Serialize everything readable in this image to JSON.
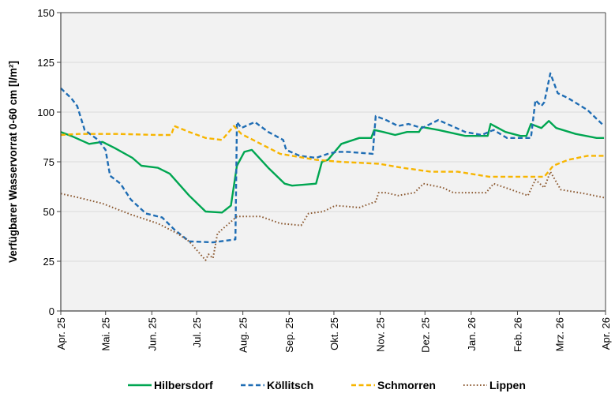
{
  "chart_data": {
    "type": "line",
    "title": "",
    "xlabel": "",
    "ylabel": "Verfügbarer Wasservorrat 0-60 cm [l/m²]",
    "ylim": [
      0,
      150
    ],
    "yticks": [
      0,
      25,
      50,
      75,
      100,
      125,
      150
    ],
    "xlim": [
      "2025-04-01",
      "2026-04-01"
    ],
    "xticks": [
      {
        "date": "2025-04-01",
        "label": "Apr. 25"
      },
      {
        "date": "2025-05-01",
        "label": "Mai. 25"
      },
      {
        "date": "2025-06-01",
        "label": "Jun. 25"
      },
      {
        "date": "2025-07-01",
        "label": "Jul. 25"
      },
      {
        "date": "2025-08-01",
        "label": "Aug. 25"
      },
      {
        "date": "2025-09-01",
        "label": "Sep. 25"
      },
      {
        "date": "2025-10-01",
        "label": "Okt. 25"
      },
      {
        "date": "2025-11-01",
        "label": "Nov. 25"
      },
      {
        "date": "2025-12-01",
        "label": "Dez. 25"
      },
      {
        "date": "2026-01-01",
        "label": "Jan. 26"
      },
      {
        "date": "2026-02-01",
        "label": "Feb. 26"
      },
      {
        "date": "2026-03-01",
        "label": "Mrz. 26"
      },
      {
        "date": "2026-04-01",
        "label": "Apr. 26"
      }
    ],
    "grid": true,
    "legend_position": "bottom",
    "series": [
      {
        "name": "Hilbersdorf",
        "color": "#00a651",
        "style": "solid",
        "points": [
          [
            "2025-04-01",
            90
          ],
          [
            "2025-04-08",
            88
          ],
          [
            "2025-04-20",
            84
          ],
          [
            "2025-04-29",
            85
          ],
          [
            "2025-05-07",
            82
          ],
          [
            "2025-05-19",
            77
          ],
          [
            "2025-05-25",
            73
          ],
          [
            "2025-06-05",
            72
          ],
          [
            "2025-06-13",
            69
          ],
          [
            "2025-06-26",
            58
          ],
          [
            "2025-07-07",
            50
          ],
          [
            "2025-07-18",
            49.5
          ],
          [
            "2025-07-24",
            53
          ],
          [
            "2025-07-28",
            73
          ],
          [
            "2025-08-02",
            80
          ],
          [
            "2025-08-07",
            81
          ],
          [
            "2025-08-18",
            72
          ],
          [
            "2025-08-29",
            64
          ],
          [
            "2025-09-03",
            63
          ],
          [
            "2025-09-19",
            64
          ],
          [
            "2025-09-23",
            75
          ],
          [
            "2025-09-27",
            76
          ],
          [
            "2025-10-06",
            84
          ],
          [
            "2025-10-18",
            87
          ],
          [
            "2025-10-26",
            87
          ],
          [
            "2025-10-28",
            91
          ],
          [
            "2025-11-03",
            90
          ],
          [
            "2025-11-11",
            88.5
          ],
          [
            "2025-11-19",
            90
          ],
          [
            "2025-11-27",
            90
          ],
          [
            "2025-11-29",
            92.5
          ],
          [
            "2025-12-10",
            91
          ],
          [
            "2025-12-28",
            88
          ],
          [
            "2026-01-12",
            88
          ],
          [
            "2026-01-14",
            94
          ],
          [
            "2026-01-24",
            90
          ],
          [
            "2026-02-03",
            88
          ],
          [
            "2026-02-07",
            88
          ],
          [
            "2026-02-10",
            94
          ],
          [
            "2026-02-17",
            92
          ],
          [
            "2026-02-22",
            95.5
          ],
          [
            "2026-02-27",
            92
          ],
          [
            "2026-03-12",
            89
          ],
          [
            "2026-03-26",
            87
          ],
          [
            "2026-03-31",
            87
          ]
        ]
      },
      {
        "name": "Köllitsch",
        "color": "#1f6db4",
        "style": "dashed",
        "points": [
          [
            "2025-04-01",
            112
          ],
          [
            "2025-04-08",
            107
          ],
          [
            "2025-04-12",
            103
          ],
          [
            "2025-04-17",
            91
          ],
          [
            "2025-04-26",
            86
          ],
          [
            "2025-05-01",
            81
          ],
          [
            "2025-05-04",
            68
          ],
          [
            "2025-05-11",
            64
          ],
          [
            "2025-05-18",
            56
          ],
          [
            "2025-05-28",
            49
          ],
          [
            "2025-06-08",
            47
          ],
          [
            "2025-06-16",
            41
          ],
          [
            "2025-06-26",
            35
          ],
          [
            "2025-07-12",
            34.5
          ],
          [
            "2025-07-27",
            36
          ],
          [
            "2025-07-28",
            95
          ],
          [
            "2025-07-31",
            92
          ],
          [
            "2025-08-09",
            95
          ],
          [
            "2025-08-18",
            90
          ],
          [
            "2025-08-28",
            86
          ],
          [
            "2025-08-30",
            81
          ],
          [
            "2025-09-08",
            78
          ],
          [
            "2025-09-19",
            77
          ],
          [
            "2025-09-27",
            79
          ],
          [
            "2025-10-03",
            80
          ],
          [
            "2025-10-10",
            80
          ],
          [
            "2025-10-27",
            79
          ],
          [
            "2025-10-29",
            98
          ],
          [
            "2025-11-05",
            96
          ],
          [
            "2025-11-13",
            93
          ],
          [
            "2025-11-20",
            94
          ],
          [
            "2025-11-29",
            92
          ],
          [
            "2025-12-10",
            96
          ],
          [
            "2025-12-28",
            90
          ],
          [
            "2026-01-08",
            88.5
          ],
          [
            "2026-01-16",
            91
          ],
          [
            "2026-01-25",
            87
          ],
          [
            "2026-02-10",
            87
          ],
          [
            "2026-02-13",
            106
          ],
          [
            "2026-02-17",
            103
          ],
          [
            "2026-02-19",
            105
          ],
          [
            "2026-02-23",
            119.5
          ],
          [
            "2026-02-28",
            109.5
          ],
          [
            "2026-03-07",
            107
          ],
          [
            "2026-03-20",
            101
          ],
          [
            "2026-03-31",
            93
          ]
        ]
      },
      {
        "name": "Schmorren",
        "color": "#f7b500",
        "style": "dashed",
        "points": [
          [
            "2025-04-01",
            88.5
          ],
          [
            "2025-04-13",
            89
          ],
          [
            "2025-05-10",
            89
          ],
          [
            "2025-06-05",
            88.5
          ],
          [
            "2025-06-14",
            88.5
          ],
          [
            "2025-06-16",
            93
          ],
          [
            "2025-06-26",
            90
          ],
          [
            "2025-07-07",
            87
          ],
          [
            "2025-07-18",
            86
          ],
          [
            "2025-07-26",
            93
          ],
          [
            "2025-07-31",
            89
          ],
          [
            "2025-08-13",
            84
          ],
          [
            "2025-08-26",
            79
          ],
          [
            "2025-09-19",
            76
          ],
          [
            "2025-10-05",
            75
          ],
          [
            "2025-10-31",
            74
          ],
          [
            "2025-11-16",
            72
          ],
          [
            "2025-12-05",
            70
          ],
          [
            "2025-12-23",
            70
          ],
          [
            "2026-01-13",
            67.5
          ],
          [
            "2026-02-19",
            67.5
          ],
          [
            "2026-02-25",
            73
          ],
          [
            "2026-03-07",
            76
          ],
          [
            "2026-03-20",
            78
          ],
          [
            "2026-03-31",
            78
          ]
        ]
      },
      {
        "name": "Lippen",
        "color": "#8c5a32",
        "style": "dotted",
        "points": [
          [
            "2025-04-01",
            59
          ],
          [
            "2025-04-13",
            57
          ],
          [
            "2025-04-29",
            54
          ],
          [
            "2025-05-18",
            48.5
          ],
          [
            "2025-06-05",
            44
          ],
          [
            "2025-06-18",
            39
          ],
          [
            "2025-06-26",
            35
          ],
          [
            "2025-07-07",
            25.5
          ],
          [
            "2025-07-09",
            28.5
          ],
          [
            "2025-07-12",
            26.5
          ],
          [
            "2025-07-15",
            39
          ],
          [
            "2025-07-28",
            47.5
          ],
          [
            "2025-08-13",
            47.5
          ],
          [
            "2025-08-26",
            44
          ],
          [
            "2025-09-09",
            43
          ],
          [
            "2025-09-14",
            49
          ],
          [
            "2025-09-24",
            50
          ],
          [
            "2025-10-02",
            53
          ],
          [
            "2025-10-18",
            52
          ],
          [
            "2025-10-29",
            55
          ],
          [
            "2025-10-31",
            59.5
          ],
          [
            "2025-11-05",
            59.5
          ],
          [
            "2025-11-13",
            58
          ],
          [
            "2025-11-24",
            59.5
          ],
          [
            "2025-11-30",
            64
          ],
          [
            "2025-12-13",
            62
          ],
          [
            "2025-12-20",
            59.5
          ],
          [
            "2026-01-11",
            59.5
          ],
          [
            "2026-01-16",
            64
          ],
          [
            "2026-01-24",
            62
          ],
          [
            "2026-02-08",
            58
          ],
          [
            "2026-02-13",
            66
          ],
          [
            "2026-02-19",
            62
          ],
          [
            "2026-02-23",
            70
          ],
          [
            "2026-03-02",
            61
          ],
          [
            "2026-03-18",
            59
          ],
          [
            "2026-03-31",
            57
          ]
        ]
      }
    ]
  }
}
